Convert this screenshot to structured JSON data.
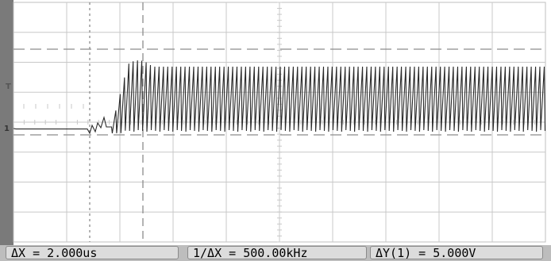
{
  "window": {
    "title": ""
  },
  "scope": {
    "channel_marker": "1",
    "trigger_marker": "T",
    "grid": {
      "divisions_x": 10,
      "divisions_y": 8,
      "subdivisions": 5
    },
    "colors": {
      "background": "#ffffff",
      "grid": "#c8c8c8",
      "trace": "#2a2a2a",
      "cursor": "#8c8c8c",
      "bezel": "#7a7a7a",
      "statusbar": "#bdbdbd"
    }
  },
  "measurements": {
    "delta_x": "ΔX = 2.000us",
    "inverse_delta_x": "1/ΔX = 500.00kHz",
    "delta_y": "ΔY(1) = 5.000V"
  }
}
